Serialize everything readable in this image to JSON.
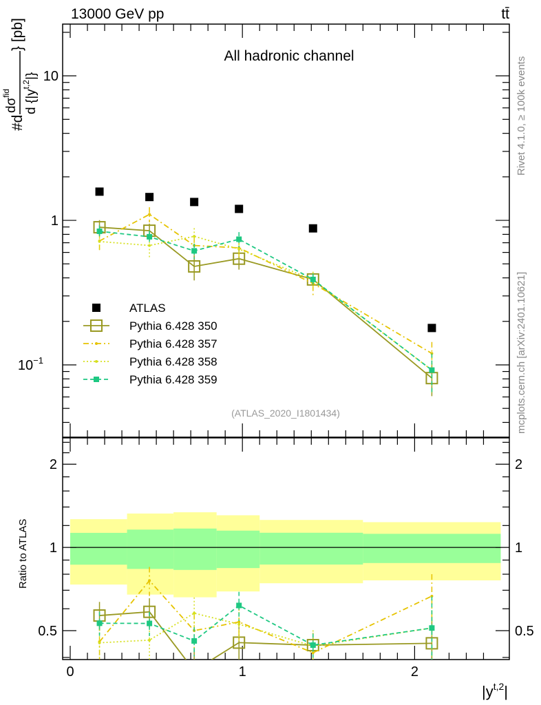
{
  "chart_data": [
    {
      "type": "line",
      "panel": "main",
      "title": "All hadronic channel",
      "top_left_label": "13000 GeV pp",
      "top_right_label": "tt̄",
      "ylabel_parts": {
        "prefix": "#d",
        "numerator": "dσ",
        "numerator_sup": "fid",
        "denominator": "d {|y",
        "denominator_sup": "t,2",
        "denominator_end": "|}",
        "suffix": "} [pb]"
      },
      "yscale": "log",
      "ylim": [
        0.0316,
        22.8
      ],
      "xlim": [
        -0.044,
        2.55
      ],
      "yticks": [
        {
          "value": 0.1,
          "label": "10",
          "sup": "−1"
        },
        {
          "value": 1,
          "label": "1"
        },
        {
          "value": 10,
          "label": "10"
        }
      ],
      "x_bin_edges": [
        0,
        0.33,
        0.6,
        0.85,
        1.1,
        1.7,
        2.5
      ],
      "x": [
        0.17,
        0.46,
        0.72,
        0.98,
        1.41,
        2.1
      ],
      "series": [
        {
          "name": "ATLAS",
          "color": "#000000",
          "style": "data",
          "values": [
            1.58,
            1.45,
            1.34,
            1.2,
            0.88,
            0.18
          ]
        },
        {
          "name": "Pythia 6.428 350",
          "color": "#999922",
          "style": "solid",
          "marker": "open-square",
          "values": [
            0.896,
            0.848,
            0.48,
            0.543,
            0.39,
            0.081
          ],
          "rel_err": [
            0.12,
            0.12,
            0.2,
            0.16,
            0.1,
            0.25
          ]
        },
        {
          "name": "Pythia 6.428 357",
          "color": "#e6c300",
          "style": "dashdot",
          "marker": "dot",
          "values": [
            0.72,
            1.1,
            0.67,
            0.645,
            0.366,
            0.12
          ],
          "rel_err": [
            0.15,
            0.12,
            0.15,
            0.15,
            0.18,
            0.2
          ]
        },
        {
          "name": "Pythia 6.428 358",
          "color": "#d6e01e",
          "style": "dotted",
          "marker": "dot",
          "values": [
            0.714,
            0.67,
            0.775,
            0.633,
            0.387,
            0.092
          ],
          "rel_err": [
            0.12,
            0.18,
            0.14,
            0.14,
            0.14,
            0.3
          ]
        },
        {
          "name": "Pythia 6.428 359",
          "color": "#1ec882",
          "style": "dashed",
          "marker": "filled-square",
          "values": [
            0.84,
            0.77,
            0.615,
            0.74,
            0.39,
            0.092
          ],
          "rel_err": [
            0.1,
            0.1,
            0.12,
            0.12,
            0.1,
            0.3
          ]
        }
      ],
      "legend": "left-middle",
      "annotation": "(ATLAS_2020_I1801434)",
      "side_labels": [
        "Rivet 4.1.0, ≥ 100k events",
        "mcplots.cern.ch [arXiv:2401.10621]"
      ]
    },
    {
      "type": "line",
      "panel": "ratio",
      "ylabel": "Ratio to ATLAS",
      "xlabel": "|y",
      "xlabel_sup": "t,2",
      "xlabel_end": "|",
      "yscale": "log",
      "ylim": [
        0.393,
        2.49
      ],
      "xlim": [
        -0.044,
        2.55
      ],
      "yticks": [
        {
          "value": 0.5,
          "label": "0.5"
        },
        {
          "value": 1,
          "label": "1"
        },
        {
          "value": 2,
          "label": "2"
        }
      ],
      "xticks": [
        {
          "value": 0,
          "label": "0"
        },
        {
          "value": 1,
          "label": "1"
        },
        {
          "value": 2,
          "label": "2"
        }
      ],
      "band_inner": {
        "color": "#99ff99",
        "lower": [
          0.866,
          0.836,
          0.829,
          0.842,
          0.867,
          0.878
        ],
        "upper": [
          1.129,
          1.16,
          1.17,
          1.15,
          1.13,
          1.12
        ]
      },
      "band_outer": {
        "color": "#ffff99",
        "lower": [
          0.734,
          0.675,
          0.66,
          0.693,
          0.742,
          0.76
        ],
        "upper": [
          1.265,
          1.326,
          1.34,
          1.307,
          1.257,
          1.234
        ]
      }
    }
  ]
}
